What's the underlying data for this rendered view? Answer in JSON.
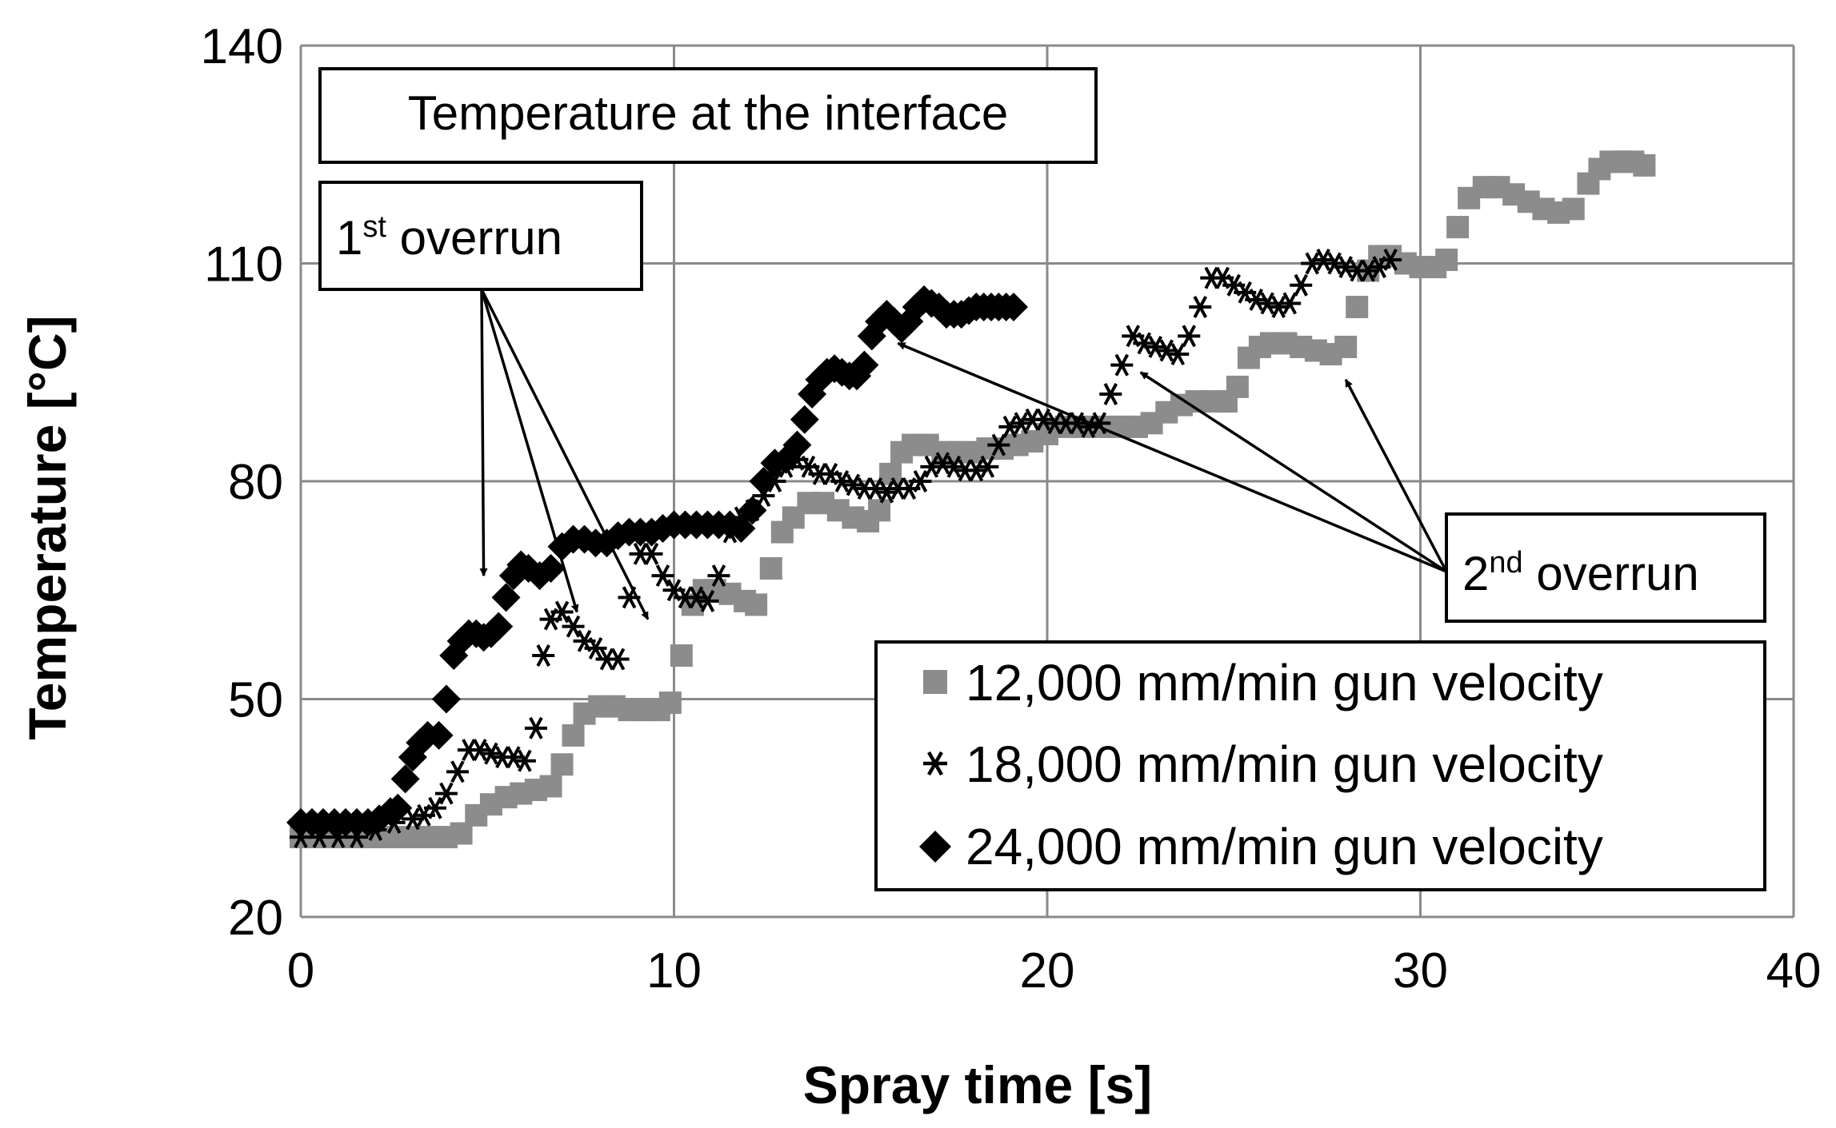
{
  "chart_data": {
    "type": "scatter",
    "xlabel": "Spray time [s]",
    "ylabel": "Temperature [°C]",
    "xlim": [
      0,
      40
    ],
    "ylim": [
      20,
      140
    ],
    "xticks": [
      0,
      10,
      20,
      30,
      40
    ],
    "yticks": [
      20,
      50,
      80,
      110,
      140
    ],
    "grid": true,
    "title_box": "Temperature at the interface",
    "annotations": {
      "first_overrun": {
        "num": "1",
        "sup": "st",
        "text": " overrun",
        "targets": [
          [
            4.9,
            67
          ],
          [
            7.4,
            62
          ],
          [
            9.3,
            61
          ]
        ]
      },
      "second_overrun": {
        "num": "2",
        "sup": "nd",
        "text": " overrun",
        "targets": [
          [
            16,
            99
          ],
          [
            22.5,
            95
          ],
          [
            28,
            94
          ]
        ]
      }
    },
    "legend_position": "bottom-right",
    "series": [
      {
        "name": "12,000 mm/min gun velocity",
        "marker": "square",
        "color": "#8c8c8c",
        "x": [
          0,
          0.5,
          1,
          1.5,
          2,
          2.5,
          3,
          3.5,
          3.9,
          4.3,
          4.7,
          5.1,
          5.5,
          5.9,
          6.3,
          6.7,
          7,
          7.3,
          7.6,
          8,
          8.4,
          8.8,
          9.2,
          9.6,
          9.9,
          10.2,
          10.5,
          10.8,
          11.1,
          11.5,
          11.9,
          12.2,
          12.6,
          12.9,
          13.2,
          13.6,
          14,
          14.4,
          14.8,
          15.2,
          15.5,
          15.8,
          16.1,
          16.4,
          16.8,
          17.2,
          17.6,
          18,
          18.4,
          18.8,
          19.2,
          19.6,
          20,
          20.5,
          21,
          21.5,
          22,
          22.4,
          22.8,
          23.2,
          23.6,
          24,
          24.4,
          24.8,
          25.1,
          25.4,
          25.7,
          26,
          26.4,
          26.8,
          27.2,
          27.6,
          28,
          28.3,
          28.6,
          28.9,
          29.2,
          29.6,
          30,
          30.4,
          30.7,
          31,
          31.3,
          31.7,
          32.1,
          32.5,
          32.9,
          33.3,
          33.7,
          34.1,
          34.5,
          34.8,
          35.1,
          35.4,
          35.7,
          36
        ],
        "y": [
          31,
          31,
          31,
          31,
          31,
          31,
          31,
          31,
          31,
          31.5,
          34,
          35.5,
          36.5,
          37,
          37.5,
          38,
          41,
          45,
          48,
          49,
          49,
          48.5,
          48.5,
          48.5,
          49.5,
          56,
          63,
          65,
          65,
          64.5,
          63.5,
          63,
          68,
          73,
          75,
          77,
          77,
          76,
          75,
          74.5,
          76,
          81,
          84,
          85,
          85,
          84,
          84,
          84,
          84.5,
          84.5,
          85,
          85.5,
          86.5,
          87.5,
          87.5,
          87.5,
          87.5,
          87.5,
          88,
          89.5,
          90.5,
          91,
          91,
          91,
          93,
          97,
          98.5,
          99,
          99,
          98.5,
          98,
          97.5,
          98.5,
          104,
          109,
          111,
          111,
          110,
          109.5,
          109.5,
          110.5,
          115,
          119,
          120.5,
          120.5,
          119.5,
          118.5,
          117.5,
          117,
          117.5,
          121,
          123,
          124,
          124,
          124,
          123.5
        ]
      },
      {
        "name": "18,000 mm/min gun velocity",
        "marker": "asterisk",
        "color": "#000000",
        "x": [
          0,
          0.5,
          1,
          1.5,
          2,
          2.5,
          3,
          3.3,
          3.6,
          3.9,
          4.2,
          4.5,
          4.8,
          5.1,
          5.4,
          5.7,
          6,
          6.3,
          6.5,
          6.7,
          7,
          7.3,
          7.6,
          7.9,
          8.2,
          8.5,
          8.8,
          9.1,
          9.4,
          9.7,
          10,
          10.3,
          10.6,
          10.9,
          11.2,
          11.5,
          11.8,
          12.1,
          12.4,
          12.7,
          13,
          13.3,
          13.6,
          13.9,
          14.2,
          14.5,
          14.8,
          15.1,
          15.4,
          15.7,
          16,
          16.3,
          16.6,
          16.9,
          17.2,
          17.5,
          17.8,
          18.1,
          18.4,
          18.7,
          19,
          19.3,
          19.6,
          19.9,
          20.2,
          20.5,
          20.8,
          21.1,
          21.4,
          21.7,
          22,
          22.3,
          22.6,
          22.9,
          23.2,
          23.5,
          23.8,
          24.1,
          24.4,
          24.7,
          25,
          25.3,
          25.6,
          25.9,
          26.2,
          26.5,
          26.8,
          27.1,
          27.4,
          27.7,
          28,
          28.3,
          28.6,
          28.9,
          29.2
        ],
        "y": [
          31,
          31,
          31,
          31,
          32,
          33,
          33.5,
          34,
          35,
          37,
          40,
          43,
          43,
          42.5,
          42,
          42,
          41.5,
          46,
          56,
          61,
          62,
          60,
          58,
          57,
          55.5,
          55.5,
          64,
          70,
          70,
          67,
          65,
          64,
          64,
          63.5,
          67,
          73,
          75,
          76,
          78,
          80,
          82,
          83,
          82,
          81,
          81,
          80,
          79.5,
          79,
          79,
          78.5,
          79,
          79,
          80,
          82,
          82.5,
          82,
          81.5,
          81.5,
          82,
          85,
          87.5,
          88,
          88.5,
          88.5,
          88,
          88,
          88,
          87.5,
          88,
          92,
          96,
          100,
          99,
          98.5,
          98,
          97.5,
          100,
          104,
          108,
          108,
          107,
          106,
          105,
          104.5,
          104,
          104.5,
          107,
          110,
          110.5,
          110,
          109.5,
          109,
          109,
          109.5,
          110.5
        ]
      },
      {
        "name": "24,000 mm/min gun velocity",
        "marker": "diamond",
        "color": "#000000",
        "x": [
          0,
          0.3,
          0.6,
          0.9,
          1.2,
          1.5,
          1.8,
          2.1,
          2.4,
          2.6,
          2.8,
          3,
          3.2,
          3.4,
          3.7,
          3.9,
          4.1,
          4.3,
          4.5,
          4.7,
          4.9,
          5.1,
          5.3,
          5.5,
          5.7,
          5.9,
          6.1,
          6.4,
          6.7,
          7,
          7.3,
          7.6,
          7.9,
          8.2,
          8.5,
          8.8,
          9.1,
          9.4,
          9.7,
          10,
          10.3,
          10.6,
          10.9,
          11.2,
          11.5,
          11.8,
          12.1,
          12.4,
          12.7,
          13,
          13.3,
          13.5,
          13.7,
          13.9,
          14.1,
          14.3,
          14.5,
          14.7,
          14.9,
          15.1,
          15.3,
          15.5,
          15.7,
          15.9,
          16.1,
          16.3,
          16.5,
          16.7,
          16.9,
          17.1,
          17.3,
          17.5,
          17.7,
          17.9,
          18.1,
          18.3,
          18.5,
          18.7,
          18.9,
          19.1
        ],
        "y": [
          33,
          33,
          33,
          33,
          33,
          33,
          33,
          33.5,
          34.5,
          35,
          39,
          42,
          44,
          45,
          45,
          50,
          56,
          58,
          59,
          59,
          58.5,
          59,
          60,
          64,
          67,
          68.5,
          68,
          67,
          68,
          71,
          72,
          72,
          71.5,
          71.5,
          72.5,
          73,
          73,
          73,
          73.5,
          74,
          74,
          74,
          74,
          74,
          74,
          73.5,
          76,
          80,
          82.5,
          83,
          85,
          88.5,
          92,
          94,
          95,
          95.5,
          95,
          94.5,
          94.5,
          96,
          100,
          102,
          103,
          102,
          101,
          102,
          104,
          105,
          104.5,
          104,
          103,
          103,
          103,
          103.5,
          104,
          104,
          104,
          104,
          104,
          104
        ]
      }
    ]
  }
}
